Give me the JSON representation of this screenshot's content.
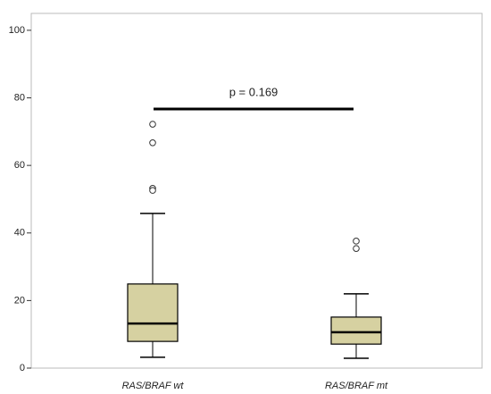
{
  "chart_data": {
    "type": "box",
    "categories": [
      "RAS/BRAF wt",
      "RAS/BRAF mt"
    ],
    "boxes": [
      {
        "whisker_low": 3.2,
        "q1": 7.9,
        "median": 13.2,
        "q3": 24.9,
        "whisker_high": 45.8,
        "outliers": [
          72.2,
          66.7,
          53.2,
          52.6
        ]
      },
      {
        "whisker_low": 2.9,
        "q1": 7.1,
        "median": 10.6,
        "q3": 15.1,
        "whisker_high": 22,
        "outliers": [
          37.6,
          35.4
        ]
      }
    ],
    "color": "#d6d1a1",
    "ylim": [
      0,
      105
    ],
    "yticks": [
      0,
      20,
      40,
      60,
      80,
      100
    ],
    "annotation": "p = 0.169"
  }
}
